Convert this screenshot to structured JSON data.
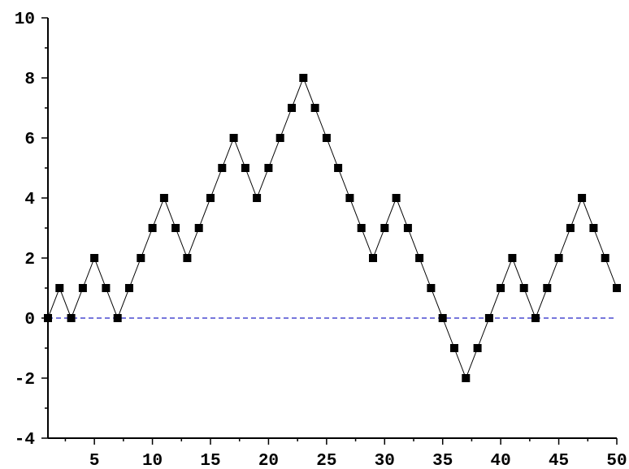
{
  "chart_data": {
    "type": "line",
    "title": "",
    "xlabel": "",
    "ylabel": "",
    "grid": false,
    "xlim": [
      1,
      50
    ],
    "ylim": [
      -4,
      10
    ],
    "x": [
      1,
      2,
      3,
      4,
      5,
      6,
      7,
      8,
      9,
      10,
      11,
      12,
      13,
      14,
      15,
      16,
      17,
      18,
      19,
      20,
      21,
      22,
      23,
      24,
      25,
      26,
      27,
      28,
      29,
      30,
      31,
      32,
      33,
      34,
      35,
      36,
      37,
      38,
      39,
      40,
      41,
      42,
      43,
      44,
      45,
      46,
      47,
      48,
      49,
      50
    ],
    "series": [
      {
        "values": [
          0,
          1,
          0,
          1,
          2,
          1,
          0,
          1,
          2,
          3,
          4,
          3,
          2,
          3,
          4,
          5,
          6,
          5,
          4,
          5,
          6,
          7,
          8,
          7,
          6,
          5,
          4,
          3,
          2,
          3,
          4,
          3,
          2,
          1,
          0,
          -1,
          -2,
          -1,
          0,
          1,
          2,
          1,
          0,
          1,
          2,
          3,
          4,
          3,
          2,
          1
        ],
        "color": "#000000",
        "marker": "square"
      }
    ],
    "xticks": [
      5,
      10,
      15,
      20,
      25,
      30,
      35,
      40,
      45,
      50
    ],
    "xtick_labels": [
      "5",
      "10",
      "15",
      "20",
      "25",
      "30",
      "35",
      "40",
      "45",
      "50"
    ],
    "yticks": [
      -4,
      -2,
      0,
      2,
      4,
      6,
      8,
      10
    ],
    "ytick_labels": [
      "-4",
      "-2",
      "0",
      "2",
      "4",
      "6",
      "8",
      "10"
    ],
    "reference_lines": [
      {
        "y": 0,
        "color": "#2424c8",
        "dashed": true
      }
    ]
  }
}
